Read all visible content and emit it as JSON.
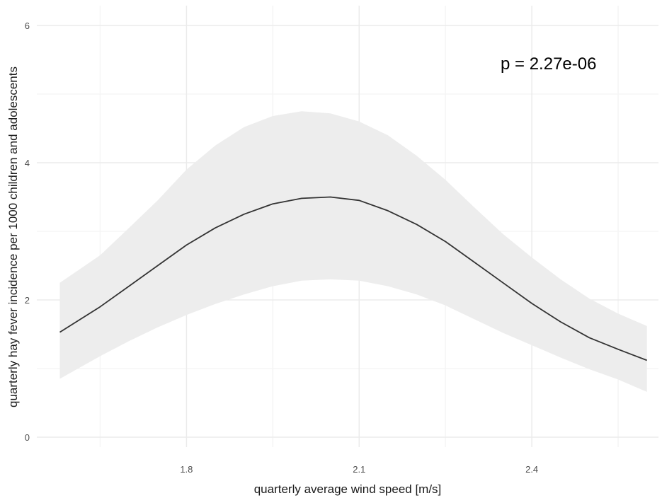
{
  "chart_data": {
    "type": "line",
    "xlabel": "quarterly average wind speed [m/s]",
    "ylabel": "quarterly hay fever incidence per 1000 children and adolescents",
    "xlim": [
      1.54,
      2.62
    ],
    "ylim": [
      0,
      6
    ],
    "x_ticks": [
      1.8,
      2.1,
      2.4
    ],
    "x_tick_labels": [
      "1.8",
      "2.1",
      "2.4"
    ],
    "y_ticks": [
      0,
      2,
      4,
      6
    ],
    "y_tick_labels": [
      "0",
      "2",
      "4",
      "6"
    ],
    "grid": true,
    "legend": "none",
    "annotation": "p = 2.27e-06",
    "series": [
      {
        "x": [
          1.58,
          1.65,
          1.7,
          1.75,
          1.8,
          1.85,
          1.9,
          1.95,
          2.0,
          2.05,
          2.1,
          2.15,
          2.2,
          2.25,
          2.3,
          2.35,
          2.4,
          2.45,
          2.5,
          2.55,
          2.6
        ],
        "y": [
          1.53,
          1.9,
          2.2,
          2.5,
          2.8,
          3.05,
          3.25,
          3.4,
          3.48,
          3.5,
          3.45,
          3.3,
          3.1,
          2.85,
          2.55,
          2.25,
          1.95,
          1.68,
          1.45,
          1.28,
          1.12
        ],
        "lower": [
          0.85,
          1.18,
          1.4,
          1.6,
          1.78,
          1.94,
          2.08,
          2.2,
          2.28,
          2.3,
          2.28,
          2.2,
          2.08,
          1.92,
          1.72,
          1.52,
          1.34,
          1.16,
          0.99,
          0.84,
          0.66
        ],
        "upper": [
          2.25,
          2.65,
          3.05,
          3.45,
          3.9,
          4.25,
          4.52,
          4.68,
          4.75,
          4.72,
          4.6,
          4.4,
          4.1,
          3.75,
          3.35,
          2.96,
          2.62,
          2.3,
          2.02,
          1.8,
          1.62
        ]
      }
    ],
    "colors": {
      "line": "#333333",
      "band": "#ededed",
      "grid_major": "#ebebeb",
      "grid_minor": "#f5f5f5"
    }
  }
}
